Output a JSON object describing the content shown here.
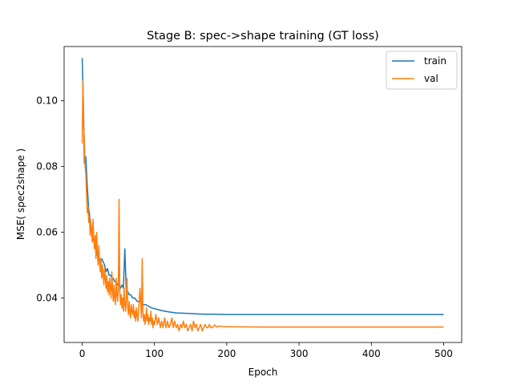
{
  "chart_data": {
    "type": "line",
    "title": "Stage B: spec->shape training (GT loss)",
    "xlabel": "Epoch",
    "ylabel": "MSE( spec2shape )",
    "xlim": [
      -25,
      525
    ],
    "ylim": [
      0.0265,
      0.1165
    ],
    "xticks": [
      0,
      100,
      200,
      300,
      400,
      500
    ],
    "yticks": [
      0.04,
      0.06,
      0.08,
      0.1
    ],
    "ytick_labels": [
      "0.04",
      "0.06",
      "0.08",
      "0.10"
    ],
    "grid": false,
    "legend_position": "top-right",
    "series": [
      {
        "name": "train",
        "color": "#1f77b4",
        "points": [
          [
            0,
            0.113
          ],
          [
            2,
            0.096
          ],
          [
            3,
            0.081
          ],
          [
            5,
            0.083
          ],
          [
            7,
            0.074
          ],
          [
            9,
            0.067
          ],
          [
            11,
            0.064
          ],
          [
            13,
            0.061
          ],
          [
            15,
            0.058
          ],
          [
            17,
            0.057
          ],
          [
            19,
            0.055
          ],
          [
            21,
            0.053
          ],
          [
            23,
            0.053
          ],
          [
            25,
            0.051
          ],
          [
            27,
            0.052
          ],
          [
            29,
            0.051
          ],
          [
            31,
            0.05
          ],
          [
            33,
            0.048
          ],
          [
            35,
            0.049
          ],
          [
            37,
            0.047
          ],
          [
            39,
            0.047
          ],
          [
            41,
            0.046
          ],
          [
            43,
            0.046
          ],
          [
            45,
            0.045
          ],
          [
            47,
            0.045
          ],
          [
            49,
            0.044
          ],
          [
            51,
            0.044
          ],
          [
            53,
            0.043
          ],
          [
            55,
            0.044
          ],
          [
            57,
            0.043
          ],
          [
            59,
            0.055
          ],
          [
            61,
            0.042
          ],
          [
            63,
            0.042
          ],
          [
            65,
            0.041
          ],
          [
            67,
            0.041
          ],
          [
            70,
            0.04
          ],
          [
            73,
            0.04
          ],
          [
            76,
            0.039
          ],
          [
            80,
            0.039
          ],
          [
            84,
            0.038
          ],
          [
            88,
            0.038
          ],
          [
            92,
            0.0375
          ],
          [
            96,
            0.037
          ],
          [
            100,
            0.0368
          ],
          [
            110,
            0.0362
          ],
          [
            120,
            0.0358
          ],
          [
            130,
            0.0355
          ],
          [
            140,
            0.0354
          ],
          [
            150,
            0.0353
          ],
          [
            160,
            0.0352
          ],
          [
            170,
            0.0351
          ],
          [
            180,
            0.0351
          ],
          [
            200,
            0.035
          ],
          [
            250,
            0.035
          ],
          [
            300,
            0.035
          ],
          [
            350,
            0.035
          ],
          [
            400,
            0.035
          ],
          [
            450,
            0.035
          ],
          [
            500,
            0.035
          ]
        ]
      },
      {
        "name": "val",
        "color": "#ff7f0e",
        "points": [
          [
            0,
            0.087
          ],
          [
            1,
            0.106
          ],
          [
            2,
            0.093
          ],
          [
            3,
            0.088
          ],
          [
            4,
            0.08
          ],
          [
            5,
            0.078
          ],
          [
            6,
            0.072
          ],
          [
            7,
            0.066
          ],
          [
            8,
            0.068
          ],
          [
            9,
            0.063
          ],
          [
            10,
            0.065
          ],
          [
            11,
            0.059
          ],
          [
            12,
            0.063
          ],
          [
            13,
            0.06
          ],
          [
            14,
            0.057
          ],
          [
            15,
            0.064
          ],
          [
            16,
            0.058
          ],
          [
            17,
            0.055
          ],
          [
            18,
            0.059
          ],
          [
            19,
            0.052
          ],
          [
            20,
            0.06
          ],
          [
            21,
            0.054
          ],
          [
            22,
            0.05
          ],
          [
            23,
            0.056
          ],
          [
            24,
            0.051
          ],
          [
            25,
            0.048
          ],
          [
            26,
            0.052
          ],
          [
            27,
            0.046
          ],
          [
            28,
            0.05
          ],
          [
            29,
            0.047
          ],
          [
            30,
            0.044
          ],
          [
            31,
            0.049
          ],
          [
            32,
            0.046
          ],
          [
            33,
            0.043
          ],
          [
            34,
            0.047
          ],
          [
            35,
            0.042
          ],
          [
            36,
            0.045
          ],
          [
            37,
            0.041
          ],
          [
            38,
            0.046
          ],
          [
            39,
            0.043
          ],
          [
            40,
            0.04
          ],
          [
            41,
            0.048
          ],
          [
            42,
            0.043
          ],
          [
            43,
            0.039
          ],
          [
            44,
            0.044
          ],
          [
            45,
            0.04
          ],
          [
            46,
            0.038
          ],
          [
            47,
            0.046
          ],
          [
            48,
            0.041
          ],
          [
            49,
            0.039
          ],
          [
            50,
            0.043
          ],
          [
            51,
            0.07
          ],
          [
            52,
            0.042
          ],
          [
            53,
            0.038
          ],
          [
            54,
            0.041
          ],
          [
            55,
            0.037
          ],
          [
            56,
            0.04
          ],
          [
            57,
            0.036
          ],
          [
            58,
            0.043
          ],
          [
            59,
            0.038
          ],
          [
            60,
            0.036
          ],
          [
            61,
            0.04
          ],
          [
            62,
            0.046
          ],
          [
            63,
            0.037
          ],
          [
            64,
            0.035
          ],
          [
            65,
            0.039
          ],
          [
            66,
            0.036
          ],
          [
            67,
            0.034
          ],
          [
            68,
            0.038
          ],
          [
            69,
            0.036
          ],
          [
            70,
            0.035
          ],
          [
            71,
            0.038
          ],
          [
            72,
            0.034
          ],
          [
            73,
            0.036
          ],
          [
            74,
            0.033
          ],
          [
            75,
            0.037
          ],
          [
            76,
            0.035
          ],
          [
            77,
            0.033
          ],
          [
            78,
            0.036
          ],
          [
            79,
            0.04
          ],
          [
            80,
            0.043
          ],
          [
            81,
            0.038
          ],
          [
            82,
            0.034
          ],
          [
            83,
            0.052
          ],
          [
            84,
            0.036
          ],
          [
            85,
            0.033
          ],
          [
            86,
            0.035
          ],
          [
            87,
            0.032
          ],
          [
            88,
            0.034
          ],
          [
            89,
            0.037
          ],
          [
            90,
            0.033
          ],
          [
            91,
            0.035
          ],
          [
            92,
            0.032
          ],
          [
            93,
            0.034
          ],
          [
            94,
            0.033
          ],
          [
            95,
            0.036
          ],
          [
            96,
            0.032
          ],
          [
            97,
            0.034
          ],
          [
            98,
            0.031
          ],
          [
            99,
            0.033
          ],
          [
            100,
            0.032
          ],
          [
            102,
            0.035
          ],
          [
            104,
            0.032
          ],
          [
            106,
            0.034
          ],
          [
            108,
            0.031
          ],
          [
            110,
            0.033
          ],
          [
            112,
            0.031
          ],
          [
            114,
            0.034
          ],
          [
            116,
            0.031
          ],
          [
            118,
            0.033
          ],
          [
            120,
            0.031
          ],
          [
            122,
            0.032
          ],
          [
            124,
            0.034
          ],
          [
            126,
            0.031
          ],
          [
            128,
            0.033
          ],
          [
            130,
            0.031
          ],
          [
            132,
            0.032
          ],
          [
            134,
            0.03
          ],
          [
            136,
            0.032
          ],
          [
            138,
            0.031
          ],
          [
            140,
            0.033
          ],
          [
            142,
            0.031
          ],
          [
            144,
            0.032
          ],
          [
            146,
            0.03
          ],
          [
            148,
            0.031
          ],
          [
            150,
            0.032
          ],
          [
            152,
            0.03
          ],
          [
            154,
            0.033
          ],
          [
            156,
            0.031
          ],
          [
            158,
            0.032
          ],
          [
            160,
            0.03
          ],
          [
            162,
            0.031
          ],
          [
            164,
            0.032
          ],
          [
            166,
            0.03
          ],
          [
            168,
            0.031
          ],
          [
            170,
            0.032
          ],
          [
            172,
            0.031
          ],
          [
            174,
            0.031
          ],
          [
            176,
            0.032
          ],
          [
            178,
            0.031
          ],
          [
            180,
            0.031
          ],
          [
            183,
            0.0318
          ],
          [
            186,
            0.0312
          ],
          [
            190,
            0.0315
          ],
          [
            195,
            0.0313
          ],
          [
            200,
            0.0313
          ],
          [
            250,
            0.0312
          ],
          [
            300,
            0.0312
          ],
          [
            350,
            0.0312
          ],
          [
            400,
            0.0312
          ],
          [
            450,
            0.0312
          ],
          [
            500,
            0.0312
          ]
        ]
      }
    ]
  }
}
